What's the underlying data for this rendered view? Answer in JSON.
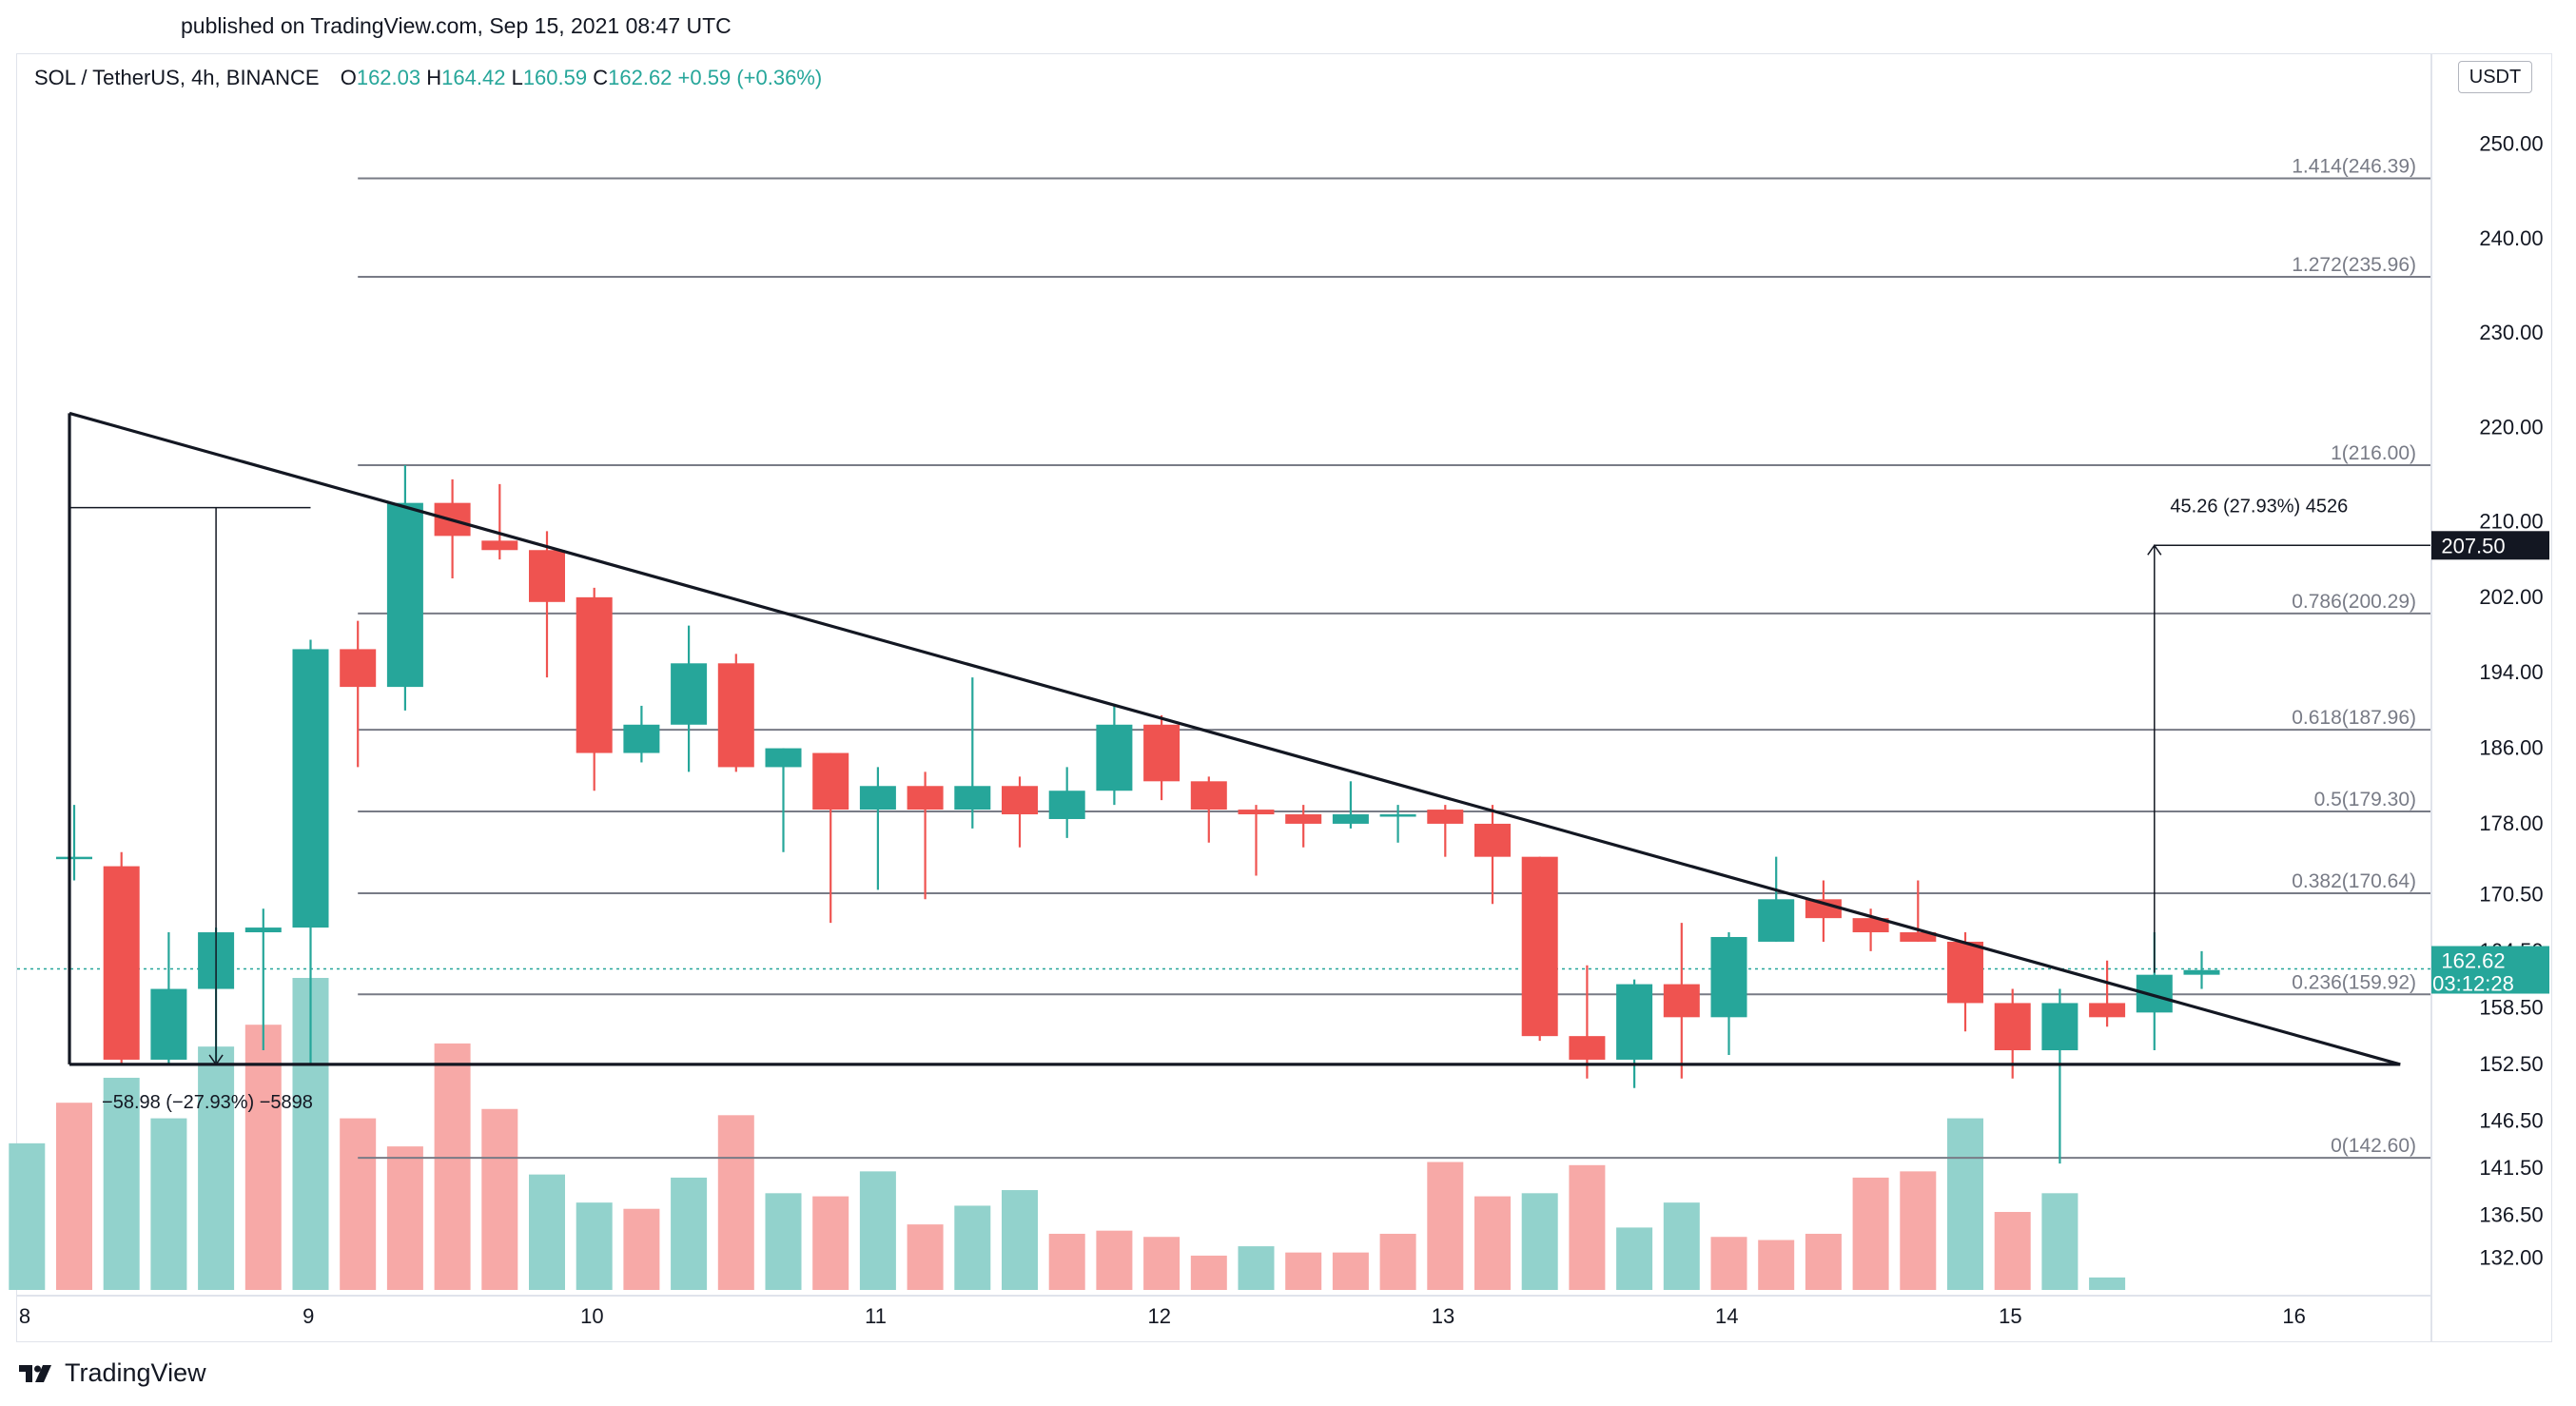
{
  "header": {
    "published": "published on TradingView.com, Sep 15, 2021 08:47 UTC"
  },
  "legend": {
    "symbol": "SOL / TetherUS, 4h, BINANCE",
    "open_label": "O",
    "open": "162.03",
    "high_label": "H",
    "high": "164.42",
    "low_label": "L",
    "low": "160.59",
    "close_label": "C",
    "close": "162.62",
    "change": "+0.59 (+0.36%)"
  },
  "currency": "USDT",
  "footer": {
    "brand": "TradingView",
    "logo_icon": "tradingview-logo-icon"
  },
  "colors": {
    "up": "#26a69a",
    "down": "#ef5350",
    "vol_up": "#92d2cc",
    "vol_down": "#f7a9a7",
    "line": "#131722",
    "fib": "#787b86"
  },
  "chart_data": {
    "type": "candlestick",
    "interval": "4h",
    "y_axis": {
      "range": [
        128.5,
        254
      ],
      "ticks": [
        "250.00",
        "240.00",
        "230.00",
        "220.00",
        "210.00",
        "202.00",
        "194.00",
        "186.00",
        "178.00",
        "170.50",
        "164.50",
        "158.50",
        "152.50",
        "146.50",
        "141.50",
        "136.50",
        "132.00"
      ]
    },
    "x_axis": {
      "ticks": [
        {
          "label": "8",
          "x": 0
        },
        {
          "label": "9",
          "x": 6
        },
        {
          "label": "10",
          "x": 12
        },
        {
          "label": "11",
          "x": 18
        },
        {
          "label": "12",
          "x": 24
        },
        {
          "label": "13",
          "x": 30
        },
        {
          "label": "14",
          "x": 36
        },
        {
          "label": "15",
          "x": 42
        },
        {
          "label": "16",
          "x": 48
        }
      ]
    },
    "candles": [
      {
        "x": 0.0,
        "o": 174.5,
        "h": 180.0,
        "l": 172.0,
        "c": 174.5
      },
      {
        "x": 1.0,
        "o": 173.5,
        "h": 175.0,
        "l": 152.5,
        "c": 153.0
      },
      {
        "x": 2.0,
        "o": 153.0,
        "h": 166.5,
        "l": 152.5,
        "c": 160.5
      },
      {
        "x": 3.0,
        "o": 160.5,
        "h": 167.0,
        "l": 152.5,
        "c": 166.5
      },
      {
        "x": 4.0,
        "o": 166.5,
        "h": 169.0,
        "l": 154.0,
        "c": 167.0
      },
      {
        "x": 5.0,
        "o": 167.0,
        "h": 197.5,
        "l": 152.5,
        "c": 196.5
      },
      {
        "x": 6.0,
        "o": 196.5,
        "h": 199.5,
        "l": 184.0,
        "c": 192.5
      },
      {
        "x": 7.0,
        "o": 192.5,
        "h": 216.0,
        "l": 190.0,
        "c": 212.0
      },
      {
        "x": 8.0,
        "o": 212.0,
        "h": 214.5,
        "l": 204.0,
        "c": 208.5
      },
      {
        "x": 9.0,
        "o": 208.0,
        "h": 214.0,
        "l": 206.0,
        "c": 207.0
      },
      {
        "x": 10.0,
        "o": 207.0,
        "h": 209.0,
        "l": 193.5,
        "c": 201.5
      },
      {
        "x": 11.0,
        "o": 202.0,
        "h": 203.0,
        "l": 181.5,
        "c": 185.5
      },
      {
        "x": 12.0,
        "o": 185.5,
        "h": 190.5,
        "l": 184.5,
        "c": 188.5
      },
      {
        "x": 13.0,
        "o": 188.5,
        "h": 199.0,
        "l": 183.5,
        "c": 195.0
      },
      {
        "x": 14.0,
        "o": 195.0,
        "h": 196.0,
        "l": 183.5,
        "c": 184.0
      },
      {
        "x": 15.0,
        "o": 184.0,
        "h": 186.0,
        "l": 175.0,
        "c": 186.0
      },
      {
        "x": 16.0,
        "o": 185.5,
        "h": 185.5,
        "l": 167.5,
        "c": 179.5
      },
      {
        "x": 17.0,
        "o": 179.5,
        "h": 184.0,
        "l": 171.0,
        "c": 182.0
      },
      {
        "x": 18.0,
        "o": 182.0,
        "h": 183.5,
        "l": 170.0,
        "c": 179.5
      },
      {
        "x": 19.0,
        "o": 179.5,
        "h": 193.5,
        "l": 177.5,
        "c": 182.0
      },
      {
        "x": 20.0,
        "o": 182.0,
        "h": 183.0,
        "l": 175.5,
        "c": 179.0
      },
      {
        "x": 21.0,
        "o": 178.5,
        "h": 184.0,
        "l": 176.5,
        "c": 181.5
      },
      {
        "x": 22.0,
        "o": 181.5,
        "h": 190.5,
        "l": 180.0,
        "c": 188.5
      },
      {
        "x": 23.0,
        "o": 188.5,
        "h": 189.5,
        "l": 180.5,
        "c": 182.5
      },
      {
        "x": 24.0,
        "o": 182.5,
        "h": 183.0,
        "l": 176.0,
        "c": 179.5
      },
      {
        "x": 25.0,
        "o": 179.5,
        "h": 180.0,
        "l": 172.5,
        "c": 179.0
      },
      {
        "x": 26.0,
        "o": 179.0,
        "h": 180.0,
        "l": 175.5,
        "c": 178.0
      },
      {
        "x": 27.0,
        "o": 178.0,
        "h": 182.5,
        "l": 177.5,
        "c": 179.0
      },
      {
        "x": 28.0,
        "o": 179.0,
        "h": 180.0,
        "l": 176.0,
        "c": 179.0
      },
      {
        "x": 29.0,
        "o": 179.5,
        "h": 180.0,
        "l": 174.5,
        "c": 178.0
      },
      {
        "x": 30.0,
        "o": 178.0,
        "h": 180.0,
        "l": 169.5,
        "c": 174.5
      },
      {
        "x": 31.0,
        "o": 174.5,
        "h": 174.5,
        "l": 155.0,
        "c": 155.5
      },
      {
        "x": 32.0,
        "o": 155.5,
        "h": 163.0,
        "l": 151.0,
        "c": 153.0
      },
      {
        "x": 33.0,
        "o": 153.0,
        "h": 161.5,
        "l": 150.0,
        "c": 161.0
      },
      {
        "x": 34.0,
        "o": 161.0,
        "h": 167.5,
        "l": 151.0,
        "c": 157.5
      },
      {
        "x": 35.0,
        "o": 157.5,
        "h": 166.5,
        "l": 153.5,
        "c": 166.0
      },
      {
        "x": 36.0,
        "o": 165.5,
        "h": 174.5,
        "l": 165.5,
        "c": 170.0
      },
      {
        "x": 37.0,
        "o": 170.0,
        "h": 172.0,
        "l": 165.5,
        "c": 168.0
      },
      {
        "x": 38.0,
        "o": 168.0,
        "h": 169.0,
        "l": 164.5,
        "c": 166.5
      },
      {
        "x": 39.0,
        "o": 166.5,
        "h": 172.0,
        "l": 165.5,
        "c": 165.5
      },
      {
        "x": 40.0,
        "o": 165.5,
        "h": 166.5,
        "l": 156.0,
        "c": 159.0
      },
      {
        "x": 41.0,
        "o": 159.0,
        "h": 160.5,
        "l": 151.0,
        "c": 154.0
      },
      {
        "x": 42.0,
        "o": 154.0,
        "h": 160.5,
        "l": 142.0,
        "c": 159.0
      },
      {
        "x": 43.0,
        "o": 159.0,
        "h": 163.5,
        "l": 156.5,
        "c": 157.5
      },
      {
        "x": 44.0,
        "o": 158.0,
        "h": 166.5,
        "l": 154.0,
        "c": 162.0
      },
      {
        "x": 45.0,
        "o": 162.0,
        "h": 164.5,
        "l": 160.5,
        "c": 162.5
      }
    ],
    "volume": [
      {
        "x": -1.0,
        "v": 0.47,
        "up": true
      },
      {
        "x": 0.0,
        "v": 0.6,
        "up": false
      },
      {
        "x": 1.0,
        "v": 0.68,
        "up": true
      },
      {
        "x": 2.0,
        "v": 0.55,
        "up": true
      },
      {
        "x": 3.0,
        "v": 0.78,
        "up": true
      },
      {
        "x": 4.0,
        "v": 0.85,
        "up": false
      },
      {
        "x": 5.0,
        "v": 1.0,
        "up": true
      },
      {
        "x": 6.0,
        "v": 0.55,
        "up": false
      },
      {
        "x": 7.0,
        "v": 0.46,
        "up": false
      },
      {
        "x": 8.0,
        "v": 0.79,
        "up": false
      },
      {
        "x": 9.0,
        "v": 0.58,
        "up": false
      },
      {
        "x": 10.0,
        "v": 0.37,
        "up": true
      },
      {
        "x": 11.0,
        "v": 0.28,
        "up": true
      },
      {
        "x": 12.0,
        "v": 0.26,
        "up": false
      },
      {
        "x": 13.0,
        "v": 0.36,
        "up": true
      },
      {
        "x": 14.0,
        "v": 0.56,
        "up": false
      },
      {
        "x": 15.0,
        "v": 0.31,
        "up": true
      },
      {
        "x": 16.0,
        "v": 0.3,
        "up": false
      },
      {
        "x": 17.0,
        "v": 0.38,
        "up": true
      },
      {
        "x": 18.0,
        "v": 0.21,
        "up": false
      },
      {
        "x": 19.0,
        "v": 0.27,
        "up": true
      },
      {
        "x": 20.0,
        "v": 0.32,
        "up": true
      },
      {
        "x": 21.0,
        "v": 0.18,
        "up": false
      },
      {
        "x": 22.0,
        "v": 0.19,
        "up": false
      },
      {
        "x": 23.0,
        "v": 0.17,
        "up": false
      },
      {
        "x": 24.0,
        "v": 0.11,
        "up": false
      },
      {
        "x": 25.0,
        "v": 0.14,
        "up": true
      },
      {
        "x": 26.0,
        "v": 0.12,
        "up": false
      },
      {
        "x": 27.0,
        "v": 0.12,
        "up": false
      },
      {
        "x": 28.0,
        "v": 0.18,
        "up": false
      },
      {
        "x": 29.0,
        "v": 0.41,
        "up": false
      },
      {
        "x": 30.0,
        "v": 0.3,
        "up": false
      },
      {
        "x": 31.0,
        "v": 0.31,
        "up": true
      },
      {
        "x": 32.0,
        "v": 0.4,
        "up": false
      },
      {
        "x": 33.0,
        "v": 0.2,
        "up": true
      },
      {
        "x": 34.0,
        "v": 0.28,
        "up": true
      },
      {
        "x": 35.0,
        "v": 0.17,
        "up": false
      },
      {
        "x": 36.0,
        "v": 0.16,
        "up": false
      },
      {
        "x": 37.0,
        "v": 0.18,
        "up": false
      },
      {
        "x": 38.0,
        "v": 0.36,
        "up": false
      },
      {
        "x": 39.0,
        "v": 0.38,
        "up": false
      },
      {
        "x": 40.0,
        "v": 0.55,
        "up": true
      },
      {
        "x": 41.0,
        "v": 0.25,
        "up": false
      },
      {
        "x": 42.0,
        "v": 0.31,
        "up": true
      },
      {
        "x": 43.0,
        "v": 0.04,
        "up": true
      }
    ],
    "fib_levels": [
      {
        "label": "1.414(246.39)",
        "price": 246.39
      },
      {
        "label": "1.272(235.96)",
        "price": 235.96
      },
      {
        "label": "1(216.00)",
        "price": 216.0
      },
      {
        "label": "0.786(200.29)",
        "price": 200.29
      },
      {
        "label": "0.618(187.96)",
        "price": 187.96
      },
      {
        "label": "0.5(179.30)",
        "price": 179.3
      },
      {
        "label": "0.382(170.64)",
        "price": 170.64
      },
      {
        "label": "0.236(159.92)",
        "price": 159.92
      },
      {
        "label": "0(142.60)",
        "price": 142.6
      }
    ],
    "fib_start_x": 6.0,
    "triangle": {
      "upper": [
        {
          "x": -0.1,
          "p": 221.5
        },
        {
          "x": 49.2,
          "p": 152.5
        }
      ],
      "lower": [
        {
          "x": -0.1,
          "p": 152.5
        },
        {
          "x": 49.2,
          "p": 152.5
        }
      ],
      "left_edge": [
        {
          "x": -0.1,
          "p": 221.5
        },
        {
          "x": -0.1,
          "p": 152.5
        }
      ]
    },
    "measure_down": {
      "label": "−58.98 (−27.93%) −5898",
      "x_from": -0.1,
      "x_to": 5.0,
      "top": 211.5,
      "bottom": 152.5,
      "arrow_x": 3.0
    },
    "measure_up": {
      "label": "45.26 (27.93%) 4526",
      "x_from": 44.0,
      "x_to": 49.2,
      "base": 162.2,
      "top": 207.5
    },
    "target_price": "207.50",
    "current_price": "162.62",
    "countdown": "03:12:28",
    "current_price_value": 162.62,
    "target_price_value": 207.5
  }
}
